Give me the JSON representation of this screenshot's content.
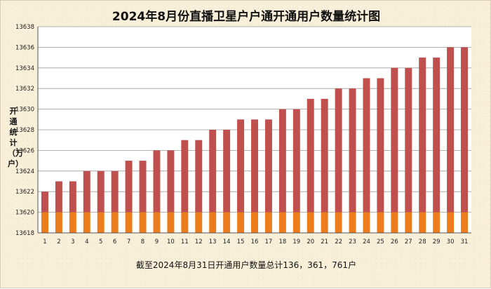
{
  "chart_data": {
    "type": "bar",
    "title": "2024年8月份直播卫星户户通开通用户数量统计图",
    "ylabel": "开通统计（万户）",
    "xlabel": "",
    "footnote": "截至2024年8月31日开通用户数量总计136，361，761户",
    "categories": [
      "1",
      "2",
      "3",
      "4",
      "5",
      "6",
      "7",
      "8",
      "9",
      "10",
      "11",
      "12",
      "13",
      "14",
      "15",
      "16",
      "17",
      "18",
      "19",
      "20",
      "21",
      "22",
      "23",
      "24",
      "25",
      "26",
      "27",
      "28",
      "29",
      "30",
      "31"
    ],
    "values": [
      13622,
      13623,
      13623,
      13624,
      13624,
      13624,
      13625,
      13625,
      13626,
      13626,
      13627,
      13627,
      13628,
      13628,
      13629,
      13629,
      13629,
      13630,
      13630,
      13631,
      13631,
      13632,
      13632,
      13633,
      13633,
      13634,
      13634,
      13635,
      13635,
      13636,
      13636
    ],
    "ylim": [
      13618,
      13638
    ],
    "yticks": [
      13618,
      13620,
      13622,
      13624,
      13626,
      13628,
      13630,
      13632,
      13634,
      13636,
      13638
    ],
    "base_segment_top": 13620,
    "grid": true,
    "legend": "none",
    "colors": {
      "lower": "#ec7c1c",
      "upper": "#c0504d",
      "grid": "#9a9a9a"
    }
  }
}
